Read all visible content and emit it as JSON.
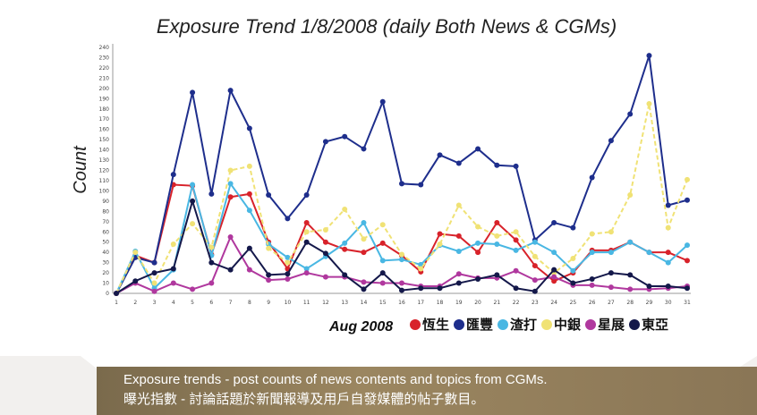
{
  "caption": {
    "line1": "Exposure trends - post counts of news contents and topics from CGMs.",
    "line2": "曝光指數 - 討論話題於新聞報導及用戶自發媒體的帖子數目。"
  },
  "chart_data": {
    "type": "line",
    "title": "Exposure Trend 1/8/2008 (daily Both News & CGMs)",
    "xlabel": "Aug 2008",
    "ylabel": "Count",
    "ylim": [
      0,
      240
    ],
    "ytick_step": 10,
    "grid": false,
    "legend_position": "bottom",
    "x": [
      1,
      2,
      3,
      4,
      5,
      6,
      7,
      8,
      9,
      10,
      11,
      12,
      13,
      14,
      15,
      16,
      17,
      18,
      19,
      20,
      21,
      22,
      23,
      24,
      25,
      26,
      27,
      28,
      29,
      30,
      31
    ],
    "series": [
      {
        "name": "恆生",
        "color": "#d8222a",
        "values": [
          0,
          37,
          30,
          106,
          105,
          38,
          94,
          97,
          50,
          24,
          69,
          50,
          43,
          40,
          49,
          37,
          21,
          58,
          56,
          40,
          69,
          52,
          27,
          12,
          20,
          42,
          42,
          50,
          40,
          40,
          32
        ]
      },
      {
        "name": "匯豐",
        "color": "#1e2e8c",
        "values": [
          0,
          35,
          30,
          116,
          196,
          97,
          198,
          161,
          96,
          73,
          96,
          148,
          153,
          141,
          187,
          107,
          106,
          135,
          127,
          141,
          125,
          124,
          52,
          69,
          64,
          113,
          149,
          175,
          232,
          86,
          91
        ]
      },
      {
        "name": "渣打",
        "color": "#49b7e3",
        "values": [
          0,
          41,
          5,
          23,
          106,
          37,
          107,
          81,
          48,
          35,
          24,
          36,
          49,
          69,
          32,
          33,
          28,
          47,
          41,
          49,
          48,
          42,
          50,
          40,
          22,
          40,
          40,
          50,
          40,
          30,
          47
        ]
      },
      {
        "name": "中銀",
        "color": "#f0e275",
        "values": [
          0,
          40,
          10,
          48,
          68,
          45,
          120,
          124,
          44,
          30,
          60,
          62,
          82,
          53,
          67,
          38,
          24,
          48,
          86,
          65,
          56,
          60,
          36,
          20,
          34,
          58,
          60,
          96,
          185,
          64,
          111
        ]
      },
      {
        "name": "星展",
        "color": "#b0389e",
        "values": [
          0,
          10,
          2,
          10,
          4,
          10,
          55,
          23,
          13,
          14,
          20,
          16,
          16,
          11,
          10,
          10,
          7,
          7,
          19,
          15,
          15,
          22,
          13,
          16,
          8,
          8,
          6,
          4,
          4,
          5,
          7
        ]
      },
      {
        "name": "東亞",
        "color": "#14184a",
        "values": [
          0,
          12,
          20,
          24,
          90,
          30,
          23,
          44,
          18,
          19,
          50,
          39,
          18,
          4,
          20,
          3,
          5,
          5,
          10,
          14,
          18,
          5,
          2,
          23,
          10,
          14,
          20,
          18,
          7,
          7,
          5
        ]
      }
    ]
  }
}
